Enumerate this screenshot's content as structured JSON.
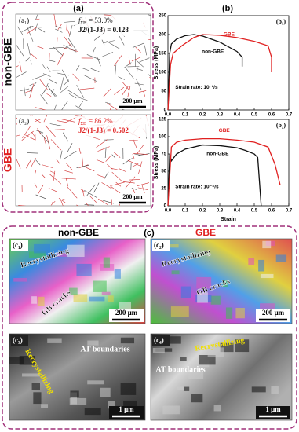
{
  "panel_a": {
    "title": "(a)",
    "rows": [
      {
        "group": "non-GBE",
        "label": "(a₁)",
        "fraction": {
          "symbol": "f",
          "subscript": "ΣB",
          "text": "= 53.0%"
        },
        "ratio": "J2/(1-J3) = 0.128",
        "scale": "200 μm"
      },
      {
        "group": "GBE",
        "label": "(a₂)",
        "fraction": {
          "symbol": "f",
          "subscript": "ΣB",
          "text": "= 86.2%"
        },
        "ratio": "J2/(1-J3) = 0.502",
        "scale": "200 μm"
      }
    ]
  },
  "panel_b": {
    "title": "(b)",
    "x_label": "Strain"
  },
  "chart_data": [
    {
      "type": "line",
      "label": "(b₁)",
      "y_label": "Stress (MPa)",
      "xlim": [
        0,
        0.7
      ],
      "ylim": [
        0,
        250
      ],
      "xticks": [
        {
          "value": 0,
          "label": "0.0"
        },
        0.1,
        0.2,
        0.3,
        0.4,
        0.5,
        0.6,
        0.7
      ],
      "yticks": [
        0,
        50,
        100,
        150,
        200,
        250
      ],
      "series": [
        {
          "name": "non-GBE",
          "color": "#111111",
          "x": [
            0,
            0.01,
            0.02,
            0.05,
            0.1,
            0.15,
            0.2,
            0.3,
            0.4,
            0.43,
            0.43
          ],
          "values": [
            0,
            150,
            175,
            188,
            197,
            200,
            196,
            180,
            155,
            140,
            115
          ]
        },
        {
          "name": "GBE",
          "color": "#e02020",
          "x": [
            0,
            0.015,
            0.03,
            0.08,
            0.15,
            0.2,
            0.3,
            0.4,
            0.5,
            0.58,
            0.6,
            0.6
          ],
          "values": [
            0,
            120,
            150,
            170,
            192,
            200,
            198,
            192,
            182,
            170,
            140,
            100
          ]
        }
      ],
      "annotations": [
        "GBE",
        "non-GBE",
        "Strain rate: 10⁻²/s"
      ]
    },
    {
      "type": "line",
      "label": "(b₂)",
      "y_label": "Stress (MPa)",
      "xlim": [
        0,
        0.7
      ],
      "ylim": [
        0,
        125
      ],
      "xticks": [
        {
          "value": 0,
          "label": "0.0"
        },
        0.1,
        0.2,
        0.3,
        0.4,
        0.5,
        0.6,
        0.7
      ],
      "yticks": [
        0,
        25,
        50,
        75,
        100,
        125
      ],
      "series": [
        {
          "name": "non-GBE",
          "color": "#111111",
          "x": [
            0,
            0.01,
            0.02,
            0.05,
            0.1,
            0.2,
            0.3,
            0.4,
            0.45,
            0.5,
            0.52,
            0.54
          ],
          "values": [
            0,
            75,
            65,
            75,
            82,
            88,
            87,
            84,
            80,
            75,
            70,
            0
          ]
        },
        {
          "name": "GBE",
          "color": "#e02020",
          "x": [
            0,
            0.02,
            0.05,
            0.1,
            0.2,
            0.3,
            0.4,
            0.5,
            0.58,
            0.62,
            0.65
          ],
          "values": [
            0,
            85,
            92,
            95,
            97,
            97,
            95,
            92,
            85,
            60,
            30
          ]
        }
      ],
      "annotations": [
        "GBE",
        "non-GBE",
        "Strain rate: 10⁻⁴/s"
      ]
    }
  ],
  "panel_c": {
    "title": "(c)",
    "groups": [
      "non-GBE",
      "GBE"
    ],
    "images": [
      {
        "label": "(c₁)",
        "notes": [
          "Recrystallizing",
          "GB cracks"
        ],
        "scale": "200 μm"
      },
      {
        "label": "(c₂)",
        "notes": [
          "Recrystallizing",
          "GB cracks"
        ],
        "scale": "200 μm"
      },
      {
        "label": "(c₃)",
        "notes": [
          "AT boundaries",
          "Recrystallizing"
        ],
        "scale": "1 μm"
      },
      {
        "label": "(c₄)",
        "notes": [
          "Recrystallizing",
          "AT boundaries"
        ],
        "scale": "1 μm"
      }
    ]
  }
}
